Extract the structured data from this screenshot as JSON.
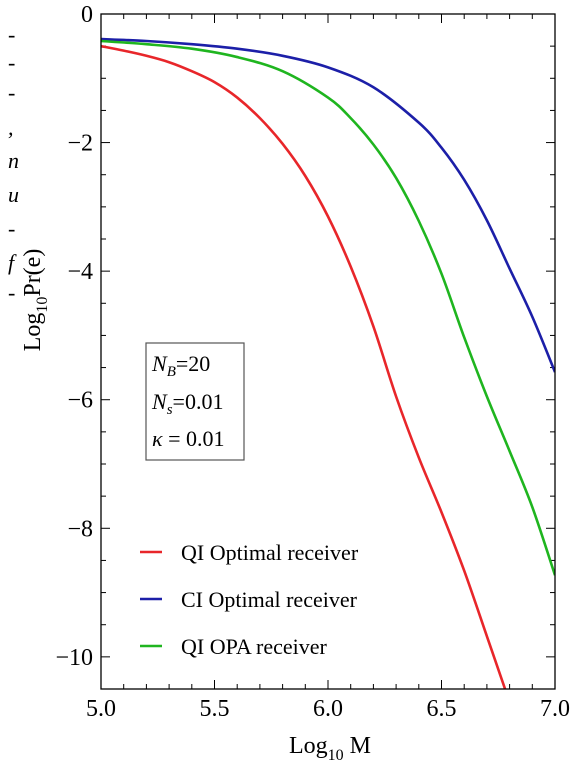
{
  "chart_data": {
    "type": "line",
    "xlabel": {
      "base": "Log",
      "sub": "10",
      "rest": " M"
    },
    "ylabel": {
      "base": "Log",
      "sub": "10",
      "rest": "Pr(e)"
    },
    "xlim": [
      5.0,
      7.0
    ],
    "ylim": [
      -10.5,
      0
    ],
    "xticks": [
      5.0,
      5.5,
      6.0,
      6.5,
      7.0
    ],
    "xtick_labels": [
      "5.0",
      "5.5",
      "6.0",
      "6.5",
      "7.0"
    ],
    "yticks": [
      0,
      -2,
      -4,
      -6,
      -8,
      -10
    ],
    "ytick_labels": [
      "0",
      "−2",
      "−4",
      "−6",
      "−8",
      "−10"
    ],
    "grid": false,
    "legend_position": "bottom-left",
    "params": [
      {
        "sym": "N",
        "sub": "B",
        "text": "=20"
      },
      {
        "sym": "N",
        "sub": "s",
        "text": "=0.01"
      },
      {
        "sym": "κ",
        "sub": "",
        "text": " = 0.01"
      }
    ],
    "series": [
      {
        "name": "QI Optimal receiver",
        "color": "#e8262a",
        "x": [
          5.0,
          5.1,
          5.2,
          5.3,
          5.4,
          5.5,
          5.6,
          5.7,
          5.8,
          5.9,
          6.0,
          6.1,
          6.2,
          6.3,
          6.4,
          6.5,
          6.6,
          6.7,
          6.78
        ],
        "y": [
          -0.5,
          -0.57,
          -0.65,
          -0.75,
          -0.89,
          -1.06,
          -1.3,
          -1.62,
          -2.02,
          -2.52,
          -3.15,
          -3.93,
          -4.86,
          -5.95,
          -6.9,
          -7.75,
          -8.66,
          -9.68,
          -10.5
        ]
      },
      {
        "name": "CI Optimal receiver",
        "color": "#1c1fa8",
        "x": [
          5.0,
          5.2,
          5.4,
          5.6,
          5.8,
          6.0,
          6.2,
          6.4,
          6.5,
          6.6,
          6.7,
          6.8,
          6.9,
          7.0
        ],
        "y": [
          -0.39,
          -0.42,
          -0.47,
          -0.54,
          -0.65,
          -0.83,
          -1.14,
          -1.69,
          -2.08,
          -2.58,
          -3.21,
          -3.96,
          -4.71,
          -5.57
        ]
      },
      {
        "name": "QI OPA receiver",
        "color": "#1fb51f",
        "x": [
          5.0,
          5.2,
          5.4,
          5.6,
          5.8,
          6.0,
          6.1,
          6.2,
          6.3,
          6.4,
          6.5,
          6.6,
          6.7,
          6.8,
          6.9,
          7.0
        ],
        "y": [
          -0.42,
          -0.47,
          -0.54,
          -0.67,
          -0.89,
          -1.3,
          -1.62,
          -2.03,
          -2.55,
          -3.22,
          -4.04,
          -5.03,
          -5.95,
          -6.8,
          -7.67,
          -8.73
        ]
      }
    ]
  },
  "margin_glyphs": [
    "-",
    "-",
    "-",
    ",",
    "n",
    "u",
    "-",
    "f",
    "-"
  ]
}
